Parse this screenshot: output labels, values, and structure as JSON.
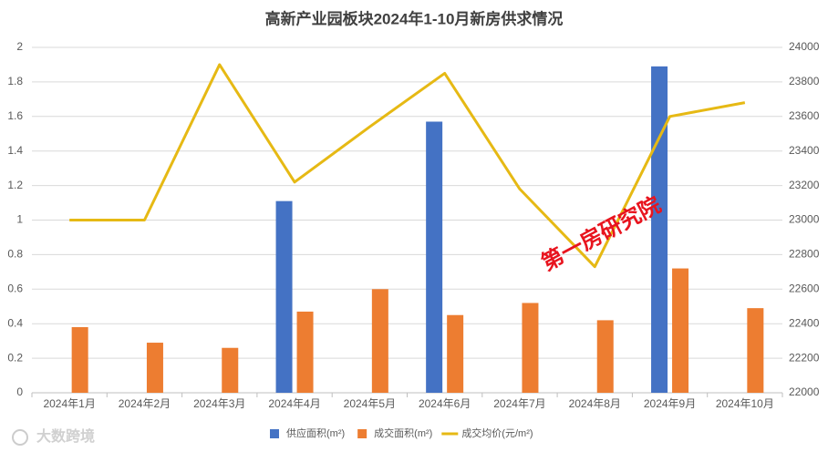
{
  "chart_data": {
    "type": "bar_line",
    "title": "高新产业园板块2024年1-10月新房供求情况",
    "categories": [
      "2024年1月",
      "2024年2月",
      "2024年3月",
      "2024年4月",
      "2024年5月",
      "2024年6月",
      "2024年7月",
      "2024年8月",
      "2024年9月",
      "2024年10月"
    ],
    "series": [
      {
        "name": "供应面积(m²)",
        "color": "#4472c4",
        "type": "bar",
        "values": [
          null,
          null,
          null,
          1.11,
          null,
          1.57,
          null,
          null,
          1.89,
          null
        ]
      },
      {
        "name": "成交面积(m²)",
        "color": "#ed7d31",
        "type": "bar",
        "values": [
          0.38,
          0.29,
          0.26,
          0.47,
          0.6,
          0.45,
          0.52,
          0.42,
          0.72,
          0.49
        ]
      },
      {
        "name": "成交均价(元/m²)",
        "color": "#e6b914",
        "type": "line",
        "axis": "y2",
        "values": [
          23000,
          23000,
          23900,
          23220,
          23540,
          23850,
          23180,
          22730,
          23600,
          23680
        ]
      }
    ],
    "ylim": [
      0,
      2
    ],
    "yticks": [
      0,
      0.2,
      0.4,
      0.6,
      0.8,
      1,
      1.2,
      1.4,
      1.6,
      1.8,
      2
    ],
    "y2lim": [
      22000,
      24000
    ],
    "y2ticks": [
      22000,
      22200,
      22400,
      22600,
      22800,
      23000,
      23200,
      23400,
      23600,
      23800,
      24000
    ],
    "grid": true,
    "legend": "bottom",
    "watermark": "第一房研究院",
    "logo_text": "大数跨境"
  }
}
